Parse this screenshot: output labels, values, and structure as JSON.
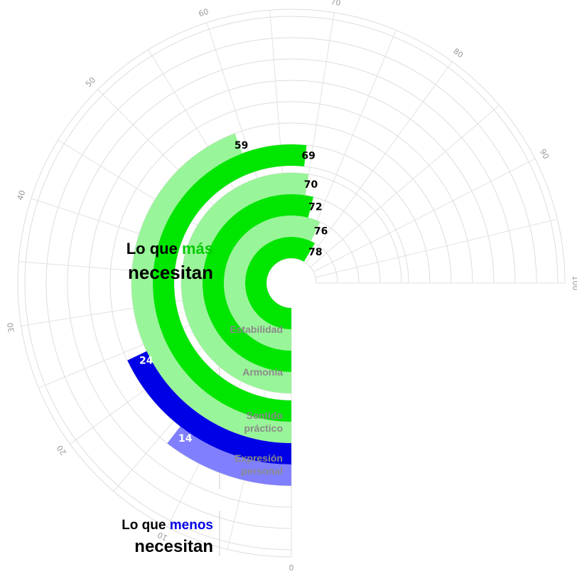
{
  "chart_data": {
    "type": "radial-bar",
    "axis": {
      "min": 0,
      "max": 100,
      "ticks": [
        0,
        10,
        20,
        30,
        40,
        50,
        60,
        70,
        80,
        90,
        100
      ],
      "minor_step": 5
    },
    "series": [
      {
        "name": "dark",
        "color": "#00e600"
      },
      {
        "name": "light",
        "color": "#99f599"
      }
    ],
    "categories": [
      {
        "label_lines": [
          "Estabilidad"
        ],
        "bars": [
          {
            "value": 78,
            "label": "78",
            "color": "#00e600",
            "label_color": "#000000"
          },
          {
            "value": 76,
            "label": "76",
            "color": "#99f599",
            "label_color": "#000000"
          }
        ]
      },
      {
        "label_lines": [
          "Armonía"
        ],
        "bars": [
          {
            "value": 72,
            "label": "72",
            "color": "#00e600",
            "label_color": "#000000"
          },
          {
            "value": 70,
            "label": "70",
            "color": "#99f599",
            "label_color": "#000000"
          }
        ]
      },
      {
        "label_lines": [
          "Sentido",
          "práctico"
        ],
        "bars": [
          {
            "value": 69,
            "label": "69",
            "color": "#00e600",
            "label_color": "#000000"
          },
          {
            "value": 59,
            "label": "59",
            "color": "#99f599",
            "label_color": "#000000"
          }
        ]
      },
      {
        "label_lines": [
          "Expresión",
          "personal"
        ],
        "bars": [
          {
            "value": 24,
            "label": "24",
            "color": "#0000e6",
            "label_color": "#ffffff"
          },
          {
            "value": 14,
            "label": "14",
            "color": "#8080ff",
            "label_color": "#ffffff"
          }
        ]
      }
    ],
    "groups": [
      {
        "pre": "Lo que ",
        "highlight": "más",
        "line2": "necesitan",
        "highlight_color": "#00cc00"
      },
      {
        "pre": "Lo que ",
        "highlight": "menos",
        "line2": "necesitan",
        "highlight_color": "#0000e6"
      }
    ]
  }
}
